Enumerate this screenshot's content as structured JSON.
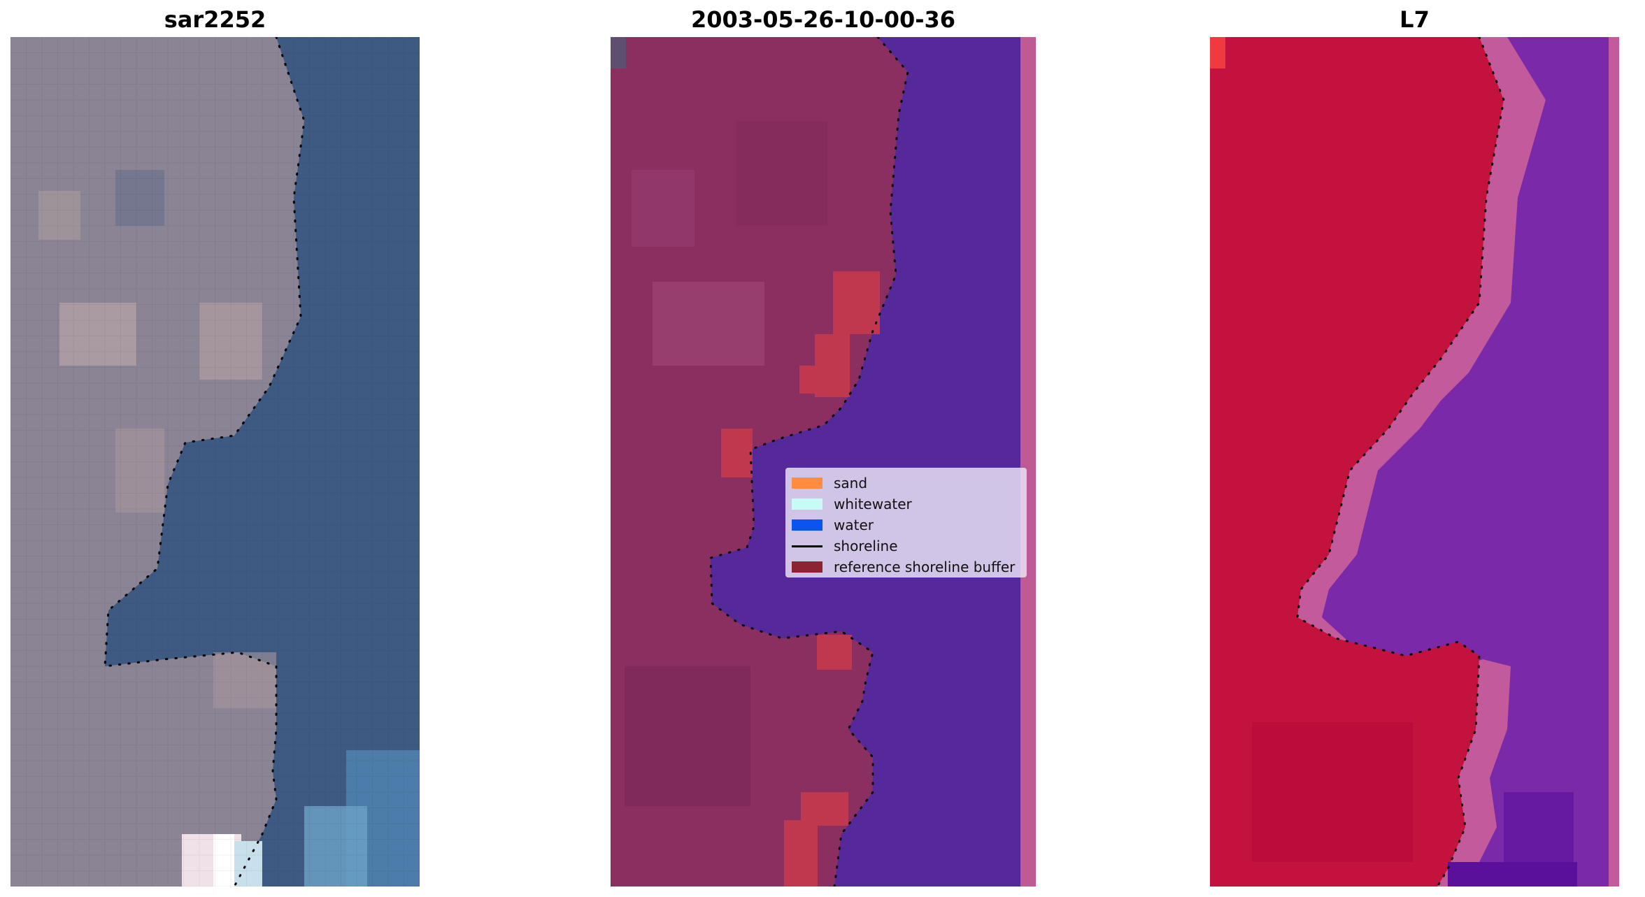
{
  "panels": [
    {
      "id": "sar",
      "title": "sar2252"
    },
    {
      "id": "classified",
      "title": "2003-05-26-10-00-36"
    },
    {
      "id": "index",
      "title": "L7"
    }
  ],
  "legend": {
    "items": [
      {
        "label": "sand",
        "kind": "patch",
        "color": "#ff8c3f"
      },
      {
        "label": "whitewater",
        "kind": "patch",
        "color": "#c8fbf6"
      },
      {
        "label": "water",
        "kind": "patch",
        "color": "#0a55f0"
      },
      {
        "label": "shoreline",
        "kind": "line",
        "color": "#000000"
      },
      {
        "label": "reference shoreline buffer",
        "kind": "patch",
        "color": "#8c2333"
      }
    ]
  },
  "colors": {
    "sar_land": "#8a8494",
    "sar_water": "#3e5a82",
    "class_land": "#8a2f60",
    "class_water": "#55299a",
    "class_buffer": "#c0384e",
    "class_edge": "#c05a95",
    "index_land": "#c4123e",
    "index_water": "#7a2aa8",
    "index_transition": "#c25a9c",
    "shoreline": "#000000"
  }
}
